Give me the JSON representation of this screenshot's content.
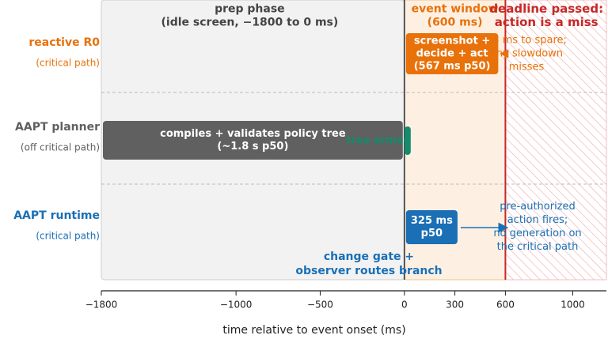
{
  "colors": {
    "reactive": "#e8710a",
    "planner": "#606060",
    "runtime": "#1a6fb5",
    "armed": "#168a6b",
    "deadline": "#c62828",
    "prep_fill": "#f2f2f2",
    "window_fill": "#fdf0e3",
    "hatch": "#f2a6a6"
  },
  "lanes": [
    {
      "label": "reactive R0",
      "sublabel": "(critical path)",
      "color_key": "reactive"
    },
    {
      "label": "AAPT planner",
      "sublabel": "(off critical path)",
      "color_key": "planner"
    },
    {
      "label": "AAPT runtime",
      "sublabel": "(critical path)",
      "color_key": "runtime"
    }
  ],
  "chart_data": {
    "type": "timeline",
    "xlabel": "time relative to event onset (ms)",
    "xlim": [
      -1800,
      1200
    ],
    "x_ticks": [
      -1800,
      -1000,
      -500,
      0,
      300,
      600,
      1000
    ],
    "x_tick_labels": [
      "−1800",
      "−1000",
      "−500",
      "0",
      "300",
      "600",
      "1000"
    ],
    "regions": [
      {
        "name": "prep",
        "start": -1800,
        "end": 0,
        "title": [
          "prep phase",
          "(idle screen, −1800 to 0 ms)"
        ]
      },
      {
        "name": "window",
        "start": 0,
        "end": 600,
        "title": [
          "event window",
          "(600 ms)"
        ]
      },
      {
        "name": "deadline",
        "start": 600,
        "end": 1200,
        "title": [
          "deadline passed:",
          "action is a miss"
        ]
      }
    ],
    "bars": [
      {
        "lane": 0,
        "start": 0,
        "end": 567,
        "color_key": "reactive",
        "lines": [
          "screenshot +",
          "decide + act",
          "(567 ms p50)"
        ]
      },
      {
        "lane": 1,
        "start": -1800,
        "end": 0,
        "color_key": "planner",
        "lines": [
          "compiles + validates policy tree",
          "(~1.8 s p50)"
        ]
      },
      {
        "lane": 1,
        "start": 0,
        "end": 20,
        "color_key": "armed",
        "lines": []
      },
      {
        "lane": 2,
        "start": 0,
        "end": 325,
        "color_key": "runtime",
        "lines": [
          "325 ms",
          "p50"
        ]
      }
    ],
    "annotations": [
      {
        "key": "spare",
        "lines": [
          "33 ms to spare;",
          "any slowdown",
          "misses"
        ],
        "color_key": "reactive"
      },
      {
        "key": "armed",
        "lines": [
          "tree armed"
        ],
        "color_key": "armed"
      },
      {
        "key": "fires",
        "lines": [
          "pre-authorized",
          "action fires;",
          "no generation on",
          "the critical path"
        ],
        "color_key": "runtime"
      },
      {
        "key": "gate",
        "lines": [
          "change gate +",
          "observer routes branch"
        ],
        "color_key": "runtime"
      }
    ]
  }
}
